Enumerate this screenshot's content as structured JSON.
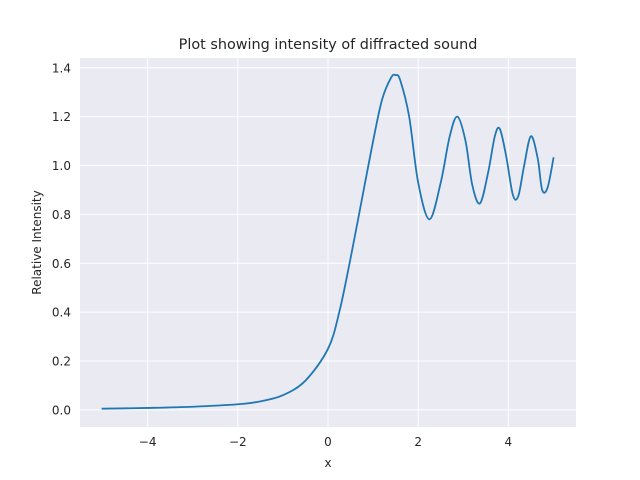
{
  "chart_data": {
    "type": "line",
    "title": "Plot showing intensity of diffracted sound",
    "xlabel": "x",
    "ylabel": "Relative Intensity",
    "xlim": [
      -5.5,
      5.5
    ],
    "ylim": [
      -0.07,
      1.44
    ],
    "x_ticks": [
      -4,
      -2,
      0,
      2,
      4
    ],
    "x_tick_labels": [
      "−4",
      "−2",
      "0",
      "2",
      "4"
    ],
    "y_ticks": [
      0.0,
      0.2,
      0.4,
      0.6,
      0.8,
      1.0,
      1.2,
      1.4
    ],
    "y_tick_labels": [
      "0.0",
      "0.2",
      "0.4",
      "0.6",
      "0.8",
      "1.0",
      "1.2",
      "1.4"
    ],
    "grid": true,
    "background_color": "#eaeaf2",
    "series": [
      {
        "color": "#1f77b4",
        "x": [
          -5.0,
          -4.0,
          -3.0,
          -2.0,
          -1.5,
          -1.0,
          -0.5,
          0.0,
          0.25,
          0.5,
          0.75,
          1.0,
          1.2,
          1.4,
          1.5,
          1.6,
          1.8,
          2.0,
          2.25,
          2.5,
          2.7,
          2.87,
          3.05,
          3.2,
          3.37,
          3.55,
          3.7,
          3.81,
          3.95,
          4.1,
          4.22,
          4.35,
          4.5,
          4.65,
          4.75,
          4.87,
          5.0
        ],
        "values": [
          0.005,
          0.008,
          0.013,
          0.023,
          0.035,
          0.06,
          0.12,
          0.25,
          0.4,
          0.62,
          0.86,
          1.1,
          1.27,
          1.36,
          1.37,
          1.35,
          1.2,
          0.93,
          0.78,
          0.93,
          1.12,
          1.2,
          1.1,
          0.92,
          0.845,
          0.97,
          1.12,
          1.15,
          1.04,
          0.88,
          0.875,
          1.0,
          1.12,
          1.03,
          0.9,
          0.91,
          1.03
        ]
      }
    ]
  }
}
